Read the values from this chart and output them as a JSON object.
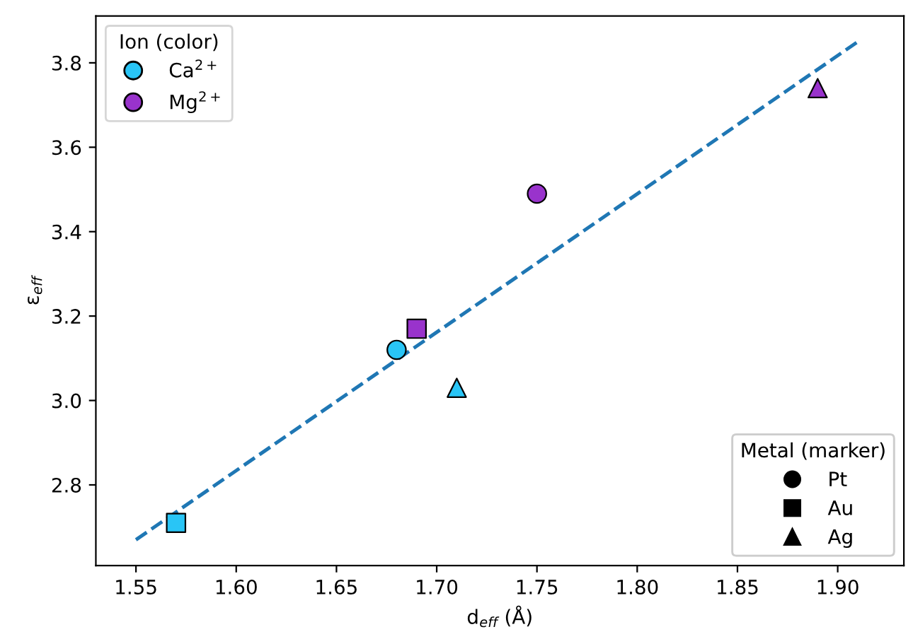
{
  "chart_data": {
    "type": "scatter",
    "xlabel": "d$_{eff}$ (Å)",
    "ylabel": "ε$_{eff}$",
    "xlim": [
      1.53,
      1.933
    ],
    "ylim": [
      2.609,
      3.911
    ],
    "xticks": [
      1.55,
      {
        "value": 1.6,
        "label": "1.60"
      },
      1.65,
      {
        "value": 1.7,
        "label": "1.70"
      },
      1.75,
      {
        "value": 1.8,
        "label": "1.80"
      },
      1.85,
      {
        "value": 1.9,
        "label": "1.90"
      }
    ],
    "yticks": [
      2.8,
      {
        "value": 3.0,
        "label": "3.0"
      },
      3.2,
      3.4,
      3.6,
      3.8
    ],
    "series": [
      {
        "name": "Ca$^{2+}$",
        "color": "#29c5f6",
        "x": [
          1.57,
          1.68,
          1.71
        ],
        "values": [
          2.71,
          3.12,
          3.03
        ],
        "marker": [
          "square",
          "circle",
          "triangle"
        ]
      },
      {
        "name": "Mg$^{2+}$",
        "color": "#9933cc",
        "x": [
          1.69,
          1.75,
          1.89
        ],
        "values": [
          3.17,
          3.49,
          3.74
        ],
        "marker": [
          "square",
          "circle",
          "triangle"
        ]
      },
      {
        "type": "line",
        "color": "#1f77b4",
        "x": [
          1.55,
          1.91
        ],
        "values": [
          2.67,
          3.85
        ],
        "line_style": "dashed",
        "marker": "none"
      },
      {
        "name": "Pt",
        "color": "#000000",
        "marker": "circle"
      },
      {
        "name": "Au",
        "color": "#000000",
        "marker": "square"
      },
      {
        "name": "Ag",
        "color": "#000000",
        "marker": "triangle"
      }
    ],
    "legend": [
      "top left",
      "bottom right"
    ],
    "legend_title": [
      "Ion (color)",
      "Metal (marker)"
    ],
    "grid": false
  }
}
